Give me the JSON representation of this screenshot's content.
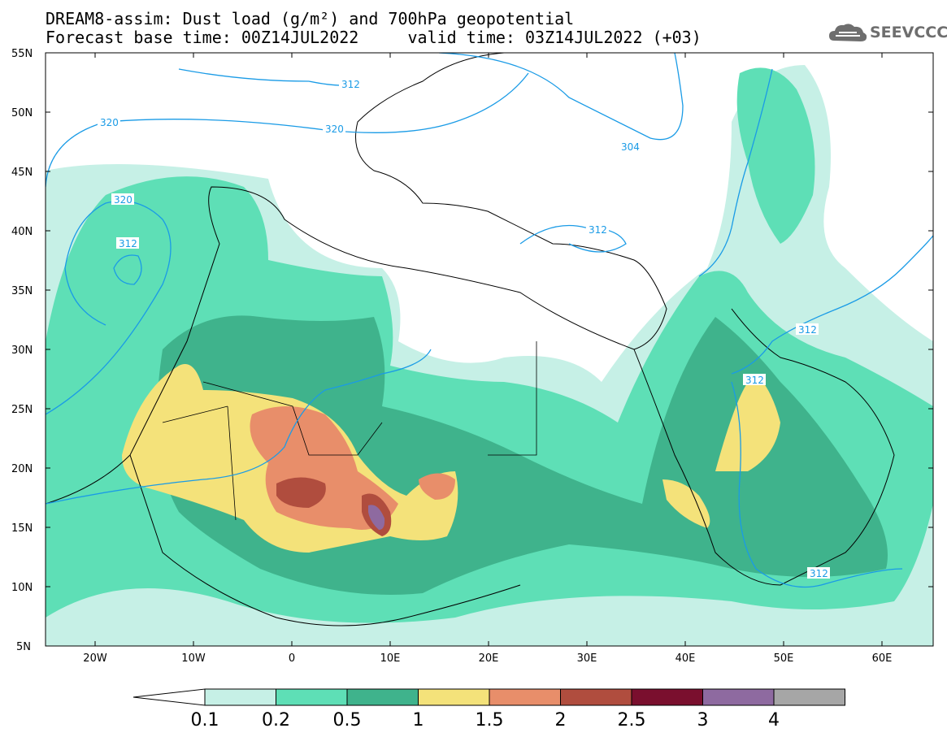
{
  "title": {
    "line1": "DREAM8-assim: Dust load (g/m²) and 700hPa geopotential",
    "line2": "Forecast base time: 00Z14JUL2022     valid time: 03Z14JUL2022 (+03)"
  },
  "logo": {
    "text": "SEEVCCC",
    "icon": "cloud-logo-icon"
  },
  "map": {
    "region": "North Africa, Europe, Middle East",
    "lat_range": [
      5,
      55
    ],
    "lon_range": [
      -25,
      65
    ],
    "y_ticks": [
      "55N",
      "50N",
      "45N",
      "40N",
      "35N",
      "30N",
      "25N",
      "20N",
      "15N",
      "10N",
      "5N"
    ],
    "x_ticks": [
      "20W",
      "10W",
      "0",
      "10E",
      "20E",
      "30E",
      "40E",
      "50E",
      "60E"
    ],
    "contour_labels": [
      "320",
      "320",
      "312",
      "312",
      "304",
      "320",
      "312",
      "312",
      "312",
      "312"
    ],
    "contour_color": "#1a9be6"
  },
  "colorbar": {
    "labels": [
      "0.1",
      "0.2",
      "0.5",
      "1",
      "1.5",
      "2",
      "2.5",
      "3",
      "4"
    ],
    "colors": [
      "#c6f0e6",
      "#5edfb6",
      "#3fb38c",
      "#f4e27a",
      "#e88e6a",
      "#b04d3e",
      "#7a0f2e",
      "#8e6aa0",
      "#a6a6a6"
    ]
  }
}
